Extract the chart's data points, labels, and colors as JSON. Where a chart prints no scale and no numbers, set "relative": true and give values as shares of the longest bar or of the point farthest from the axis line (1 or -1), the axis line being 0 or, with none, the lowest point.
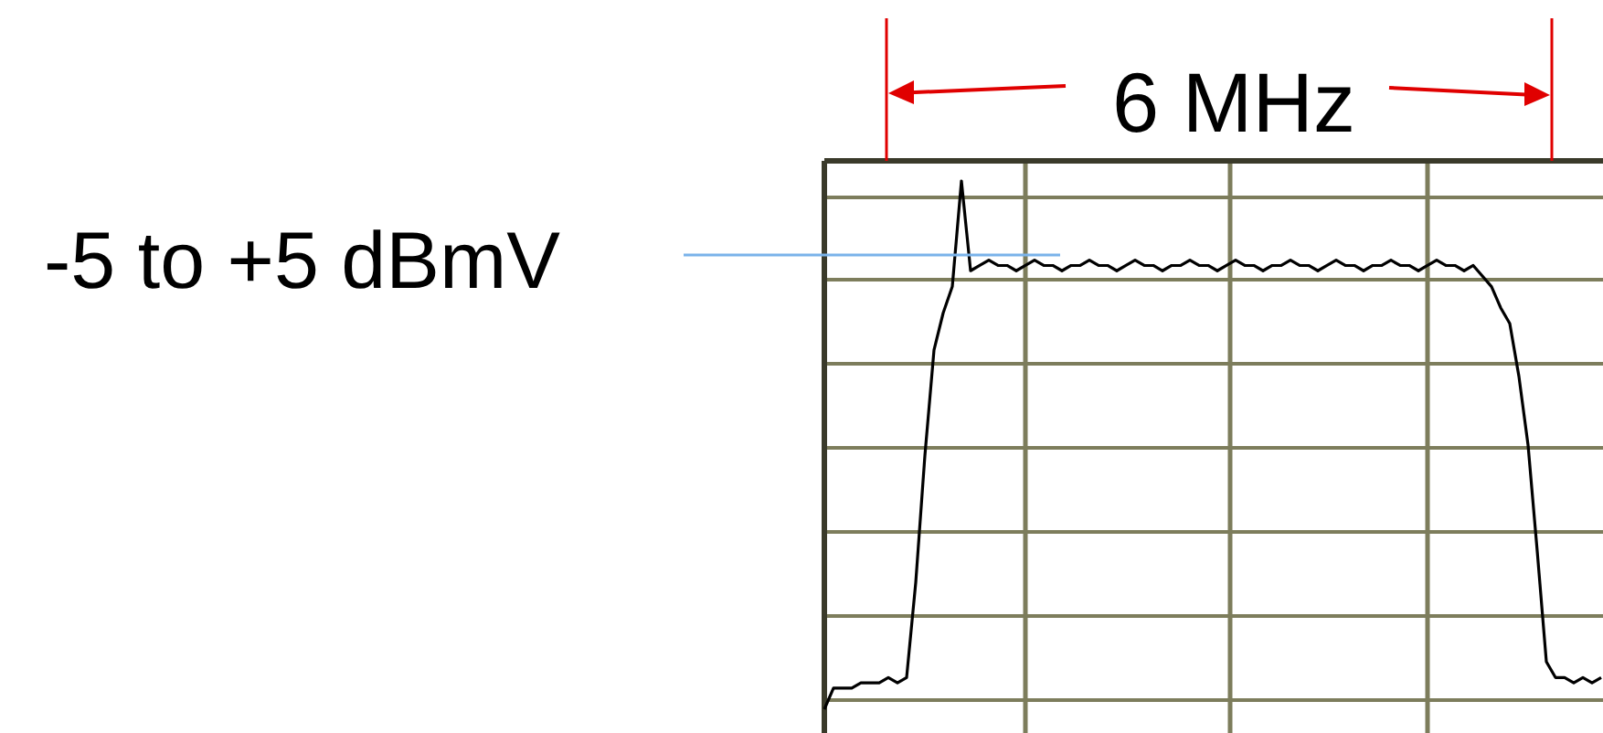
{
  "chart_data": {
    "type": "line",
    "relative": true,
    "grid": true,
    "marker": "none",
    "line_style": "solid",
    "categories": [
      null,
      null,
      null,
      null,
      null,
      null,
      null,
      null,
      null,
      null,
      null,
      null,
      null,
      null,
      null,
      null,
      null,
      null,
      null,
      null,
      null,
      null,
      null,
      null,
      null,
      null,
      null,
      null,
      null,
      null,
      null,
      null,
      null,
      null,
      null,
      null,
      null,
      null,
      null,
      null,
      null,
      null,
      null,
      null,
      null,
      null,
      null,
      null,
      null,
      null,
      null,
      null,
      null,
      null,
      null,
      null,
      null,
      null,
      null,
      null,
      null,
      null,
      null,
      null,
      null,
      null,
      null,
      null,
      null,
      null,
      null,
      null,
      null,
      null,
      null,
      null,
      null,
      null,
      null,
      null,
      null,
      null,
      null,
      null,
      null,
      null
    ],
    "series": [
      {
        "color": "#000000",
        "values": [
          0,
          0.04,
          0.04,
          0.04,
          0.05,
          0.05,
          0.05,
          0.06,
          0.05,
          0.06,
          0.24,
          0.48,
          0.68,
          0.75,
          0.8,
          1,
          0.83,
          0.84,
          0.85,
          0.84,
          0.84,
          0.83,
          0.84,
          0.85,
          0.84,
          0.84,
          0.83,
          0.84,
          0.84,
          0.85,
          0.84,
          0.84,
          0.83,
          0.84,
          0.85,
          0.84,
          0.84,
          0.83,
          0.84,
          0.84,
          0.85,
          0.84,
          0.84,
          0.83,
          0.84,
          0.85,
          0.84,
          0.84,
          0.83,
          0.84,
          0.84,
          0.85,
          0.84,
          0.84,
          0.83,
          0.84,
          0.85,
          0.84,
          0.84,
          0.83,
          0.84,
          0.84,
          0.85,
          0.84,
          0.84,
          0.83,
          0.84,
          0.85,
          0.84,
          0.84,
          0.83,
          0.84,
          0.82,
          0.8,
          0.76,
          0.73,
          0.63,
          0.5,
          0.3,
          0.09,
          0.06,
          0.06,
          0.05,
          0.06,
          0.05,
          0.06
        ]
      }
    ],
    "ref_lines": [
      {
        "axis": "y",
        "value": 0.86,
        "label": "-5 to +5 dBmV",
        "color": "#7ab3ea"
      }
    ],
    "annotations": [
      "6 MHz"
    ]
  }
}
